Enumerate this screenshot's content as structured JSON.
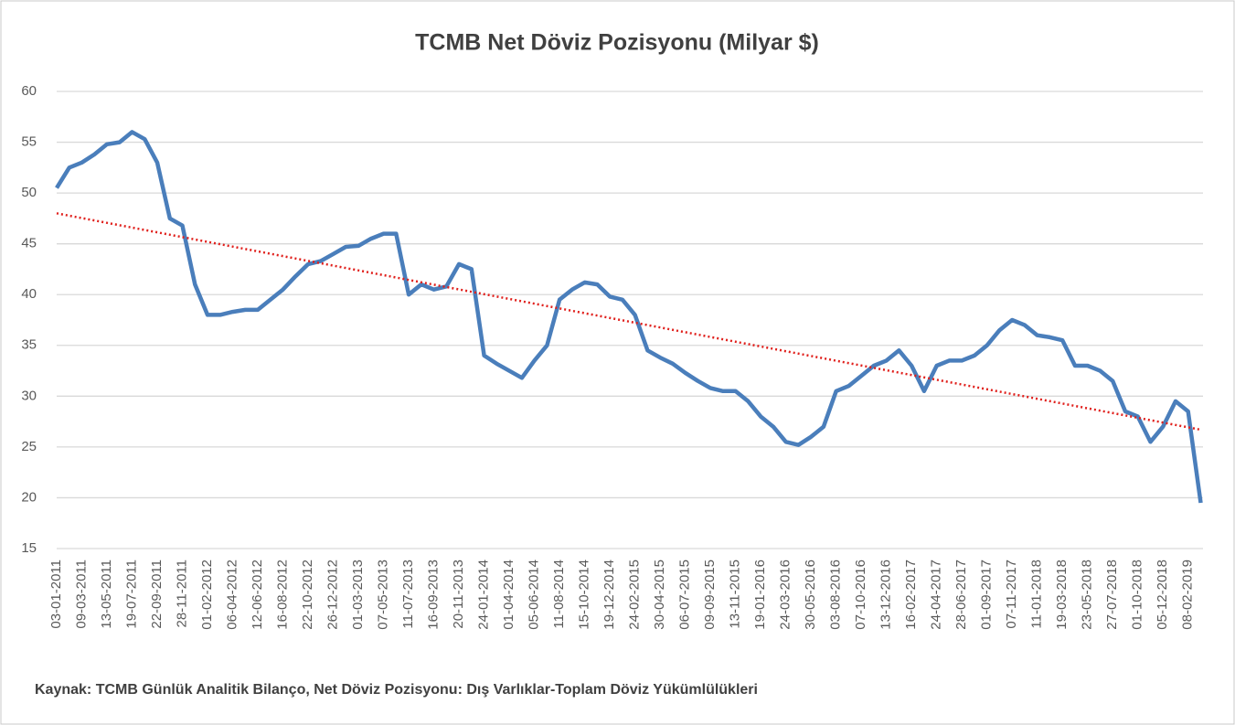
{
  "chart_data": {
    "type": "line",
    "title": "TCMB  Net Döviz Pozisyonu (Milyar $)",
    "footnote": "Kaynak: TCMB Günlük Analitik Bilanço, Net Döviz Pozisyonu: Dış Varlıklar-Toplam  Döviz Yükümlülükleri",
    "categories": [
      "03-01-2011",
      null,
      "09-03-2011",
      null,
      "13-05-2011",
      null,
      "19-07-2011",
      null,
      "22-09-2011",
      null,
      "28-11-2011",
      null,
      "01-02-2012",
      null,
      "06-04-2012",
      null,
      "12-06-2012",
      null,
      "16-08-2012",
      null,
      "22-10-2012",
      null,
      "26-12-2012",
      null,
      "01-03-2013",
      null,
      "07-05-2013",
      null,
      "11-07-2013",
      null,
      "16-09-2013",
      null,
      "20-11-2013",
      null,
      "24-01-2014",
      null,
      "01-04-2014",
      null,
      "05-06-2014",
      null,
      "11-08-2014",
      null,
      "15-10-2014",
      null,
      "19-12-2014",
      null,
      "24-02-2015",
      null,
      "30-04-2015",
      null,
      "06-07-2015",
      null,
      "09-09-2015",
      null,
      "13-11-2015",
      null,
      "19-01-2016",
      null,
      "24-03-2016",
      null,
      "30-05-2016",
      null,
      "03-08-2016",
      null,
      "07-10-2016",
      null,
      "13-12-2016",
      null,
      "16-02-2017",
      null,
      "24-04-2017",
      null,
      "28-06-2017",
      null,
      "01-09-2017",
      null,
      "07-11-2017",
      null,
      "11-01-2018",
      null,
      "19-03-2018",
      null,
      "23-05-2018",
      null,
      "27-07-2018",
      null,
      "01-10-2018",
      null,
      "05-12-2018",
      null,
      "08-02-2019",
      null
    ],
    "series": [
      {
        "color": "#4a7ebb",
        "values": [
          50.5,
          52.5,
          53,
          53.8,
          54.8,
          55,
          56,
          55.3,
          53,
          47.5,
          46.8,
          41,
          38,
          38,
          38.3,
          38.5,
          38.5,
          39.5,
          40.5,
          41.8,
          43,
          43.3,
          44,
          44.7,
          44.8,
          45.5,
          46,
          46,
          40,
          41,
          40.5,
          40.8,
          43,
          42.5,
          34,
          33.2,
          32.5,
          31.8,
          33.5,
          35,
          39.5,
          40.5,
          41.2,
          41,
          39.8,
          39.5,
          38,
          34.5,
          33.8,
          33.2,
          32.3,
          31.5,
          30.8,
          30.5,
          30.5,
          29.5,
          28,
          27,
          25.5,
          25.2,
          26,
          27,
          30.5,
          31,
          32,
          33,
          33.5,
          34.5,
          33,
          30.5,
          33,
          33.5,
          33.5,
          34,
          35,
          36.5,
          37.5,
          37,
          36,
          35.8,
          35.5,
          33,
          33,
          32.5,
          31.5,
          28.5,
          28,
          25.5,
          27,
          29.5,
          28.5,
          19.5
        ]
      }
    ],
    "trendline": {
      "color": "#e0201c",
      "values": [
        48,
        26.7
      ]
    },
    "ylim": [
      15,
      60
    ],
    "yticks": [
      15,
      20,
      25,
      30,
      35,
      40,
      45,
      50,
      55,
      60
    ],
    "grid": true
  }
}
